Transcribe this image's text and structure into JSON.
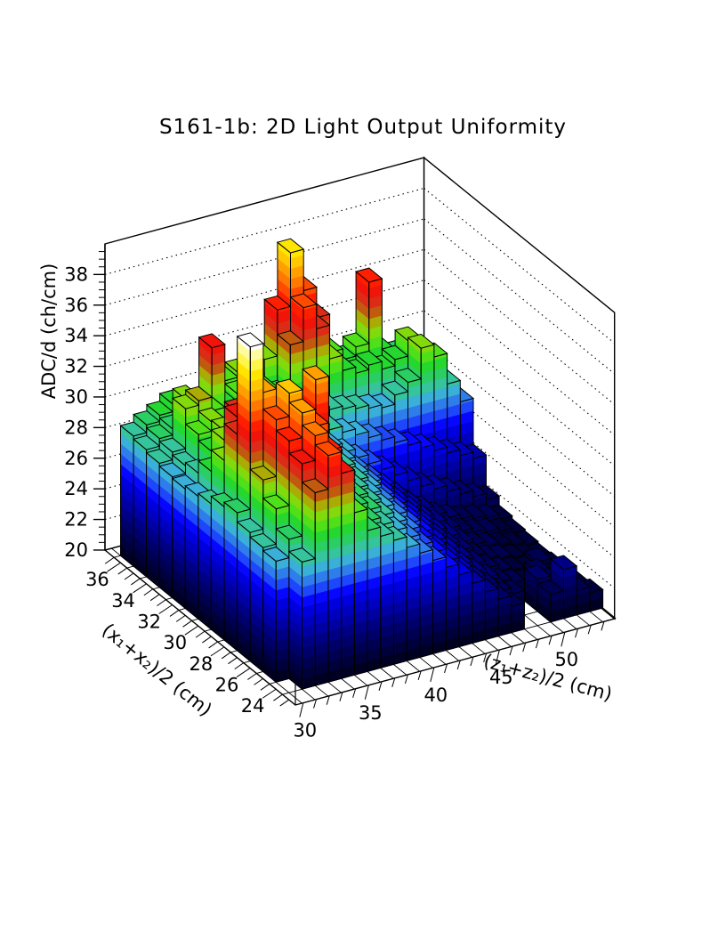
{
  "title": "S161-1b: 2D Light Output Uniformity",
  "chart_data": {
    "type": "lego3d-histogram",
    "title": "S161-1b: 2D Light Output Uniformity",
    "x_axis": {
      "label": "(z₁+z₂)/2 (cm)",
      "ticks": [
        30,
        35,
        40,
        45,
        50
      ],
      "range": [
        29.4,
        53.8
      ],
      "bin_start": 29.9,
      "bin_width": 1,
      "n_bins": 24
    },
    "y_axis": {
      "label": "(x₁+x₂)/2 (cm)",
      "ticks": [
        24,
        26,
        28,
        30,
        32,
        34,
        36
      ],
      "range": [
        22.5,
        37.2
      ],
      "bin_start": 23.5,
      "bin_width": 1,
      "n_bins": 13
    },
    "z_axis": {
      "label": "ADC/d (ch/cm)",
      "ticks": [
        20,
        22,
        24,
        26,
        28,
        30,
        32,
        34,
        36,
        38
      ],
      "range": [
        20,
        40
      ],
      "grid": "dotted"
    },
    "palette": [
      "#000022",
      "#00003A",
      "#000052",
      "#00006A",
      "#000085",
      "#0000A3",
      "#0000C1",
      "#0000DF",
      "#0707FF",
      "#1E46FA",
      "#2E7DEB",
      "#3AAFD7",
      "#35C49B",
      "#2BCE62",
      "#25D72F",
      "#4FE01A",
      "#82DA0D",
      "#AAAB04",
      "#C15A0E",
      "#DC2B16",
      "#F0140A",
      "#FF1E00",
      "#FF4A00",
      "#FF7800",
      "#FFA000",
      "#FFC800",
      "#FFE600",
      "#FFF64B",
      "#FFFCA0",
      "#FFFFFF"
    ],
    "values_note": "rows front (x=24) to back (x=36); 24 z-bins from 29.9 to 53.9 cm; null = empty bin",
    "values": [
      [
        null,
        28.3,
        32.6,
        34.8,
        33.4,
        30.6,
        29.2,
        28.6,
        28.1,
        27.4,
        26.8,
        26.1,
        25.4,
        24.7,
        23.9,
        23.1,
        22.4,
        21.7,
        null,
        null,
        21.8,
        23.2,
        21.6,
        21.2
      ],
      [
        27.9,
        29.1,
        33.8,
        35.4,
        34.2,
        31.2,
        29.5,
        28.9,
        28.4,
        27.8,
        27.1,
        26.4,
        25.7,
        24.9,
        24.1,
        23.3,
        22.6,
        22.0,
        21.6,
        null,
        22.1,
        21.7,
        21.4,
        21.0
      ],
      [
        28.1,
        30.4,
        34.6,
        36.2,
        35.1,
        32.4,
        29.8,
        29.2,
        28.7,
        28.1,
        27.4,
        26.7,
        25.9,
        25.1,
        24.3,
        23.5,
        22.8,
        22.2,
        21.7,
        21.4,
        21.2,
        21.6,
        21.1,
        20.9
      ],
      [
        28.4,
        31.6,
        35.3,
        36.8,
        34.6,
        31.8,
        30.1,
        29.5,
        28.9,
        28.3,
        27.7,
        27.0,
        26.2,
        25.4,
        24.6,
        23.8,
        23.0,
        22.4,
        21.9,
        21.5,
        21.3,
        21.1,
        21.4,
        20.9
      ],
      [
        29.0,
        39.6,
        36.4,
        35.0,
        33.6,
        31.4,
        36.3,
        29.7,
        29.1,
        28.5,
        27.9,
        27.2,
        26.4,
        25.6,
        24.8,
        24.0,
        23.2,
        22.6,
        22.0,
        21.6,
        21.4,
        21.2,
        21.0,
        20.8
      ],
      [
        28.7,
        33.2,
        35.8,
        34.4,
        32.8,
        30.9,
        30.5,
        29.9,
        29.3,
        28.7,
        28.1,
        27.4,
        26.6,
        25.8,
        25.0,
        24.2,
        23.4,
        22.8,
        22.2,
        21.8,
        21.5,
        21.3,
        21.1,
        20.9
      ],
      [
        28.2,
        30.8,
        33.4,
        36.6,
        34.0,
        31.6,
        30.7,
        30.1,
        29.5,
        28.9,
        28.3,
        27.6,
        26.8,
        26.0,
        25.2,
        24.4,
        23.6,
        23.0,
        22.4,
        22.0,
        21.7,
        21.5,
        21.3,
        21.0
      ],
      [
        28.0,
        29.4,
        31.2,
        32.8,
        31.9,
        30.4,
        30.0,
        30.3,
        29.7,
        29.1,
        28.5,
        27.8,
        27.0,
        26.2,
        25.4,
        24.6,
        23.8,
        23.2,
        22.6,
        22.2,
        21.9,
        21.7,
        21.5,
        21.2
      ],
      [
        27.8,
        28.6,
        29.8,
        30.9,
        30.2,
        29.6,
        29.9,
        30.5,
        29.9,
        29.3,
        28.7,
        28.0,
        27.4,
        26.8,
        26.2,
        25.6,
        25.0,
        24.4,
        23.8,
        23.4,
        23.0,
        22.6,
        22.2,
        21.8
      ],
      [
        27.9,
        28.4,
        30.2,
        30.8,
        29.2,
        28.9,
        29.4,
        30.0,
        30.2,
        29.6,
        29.0,
        28.6,
        28.2,
        27.8,
        27.4,
        27.0,
        26.6,
        26.2,
        25.8,
        25.4,
        25.0,
        24.6,
        24.2,
        23.8
      ],
      [
        28.1,
        28.6,
        31.2,
        31.5,
        30.6,
        29.1,
        29.6,
        30.1,
        30.4,
        29.9,
        29.4,
        29.0,
        28.8,
        28.6,
        28.4,
        28.2,
        28.0,
        27.8,
        28.4,
        29.0,
        31.0,
        30.2,
        28.2,
        26.8
      ],
      [
        28.3,
        28.8,
        29.2,
        30.9,
        29.0,
        33.8,
        29.8,
        30.3,
        30.6,
        30.1,
        29.6,
        32.6,
        34.8,
        33.2,
        31.0,
        30.0,
        29.6,
        29.9,
        29.4,
        29.8,
        30.8,
        29.4,
        27.8,
        26.6
      ],
      [
        28.5,
        29.0,
        29.4,
        29.9,
        29.3,
        29.6,
        30.0,
        30.5,
        30.8,
        30.3,
        31.2,
        34.2,
        37.7,
        35.0,
        33.0,
        30.5,
        29.8,
        30.4,
        34.4,
        29.6,
        29.2,
        28.4,
        27.6,
        27.0
      ]
    ]
  }
}
